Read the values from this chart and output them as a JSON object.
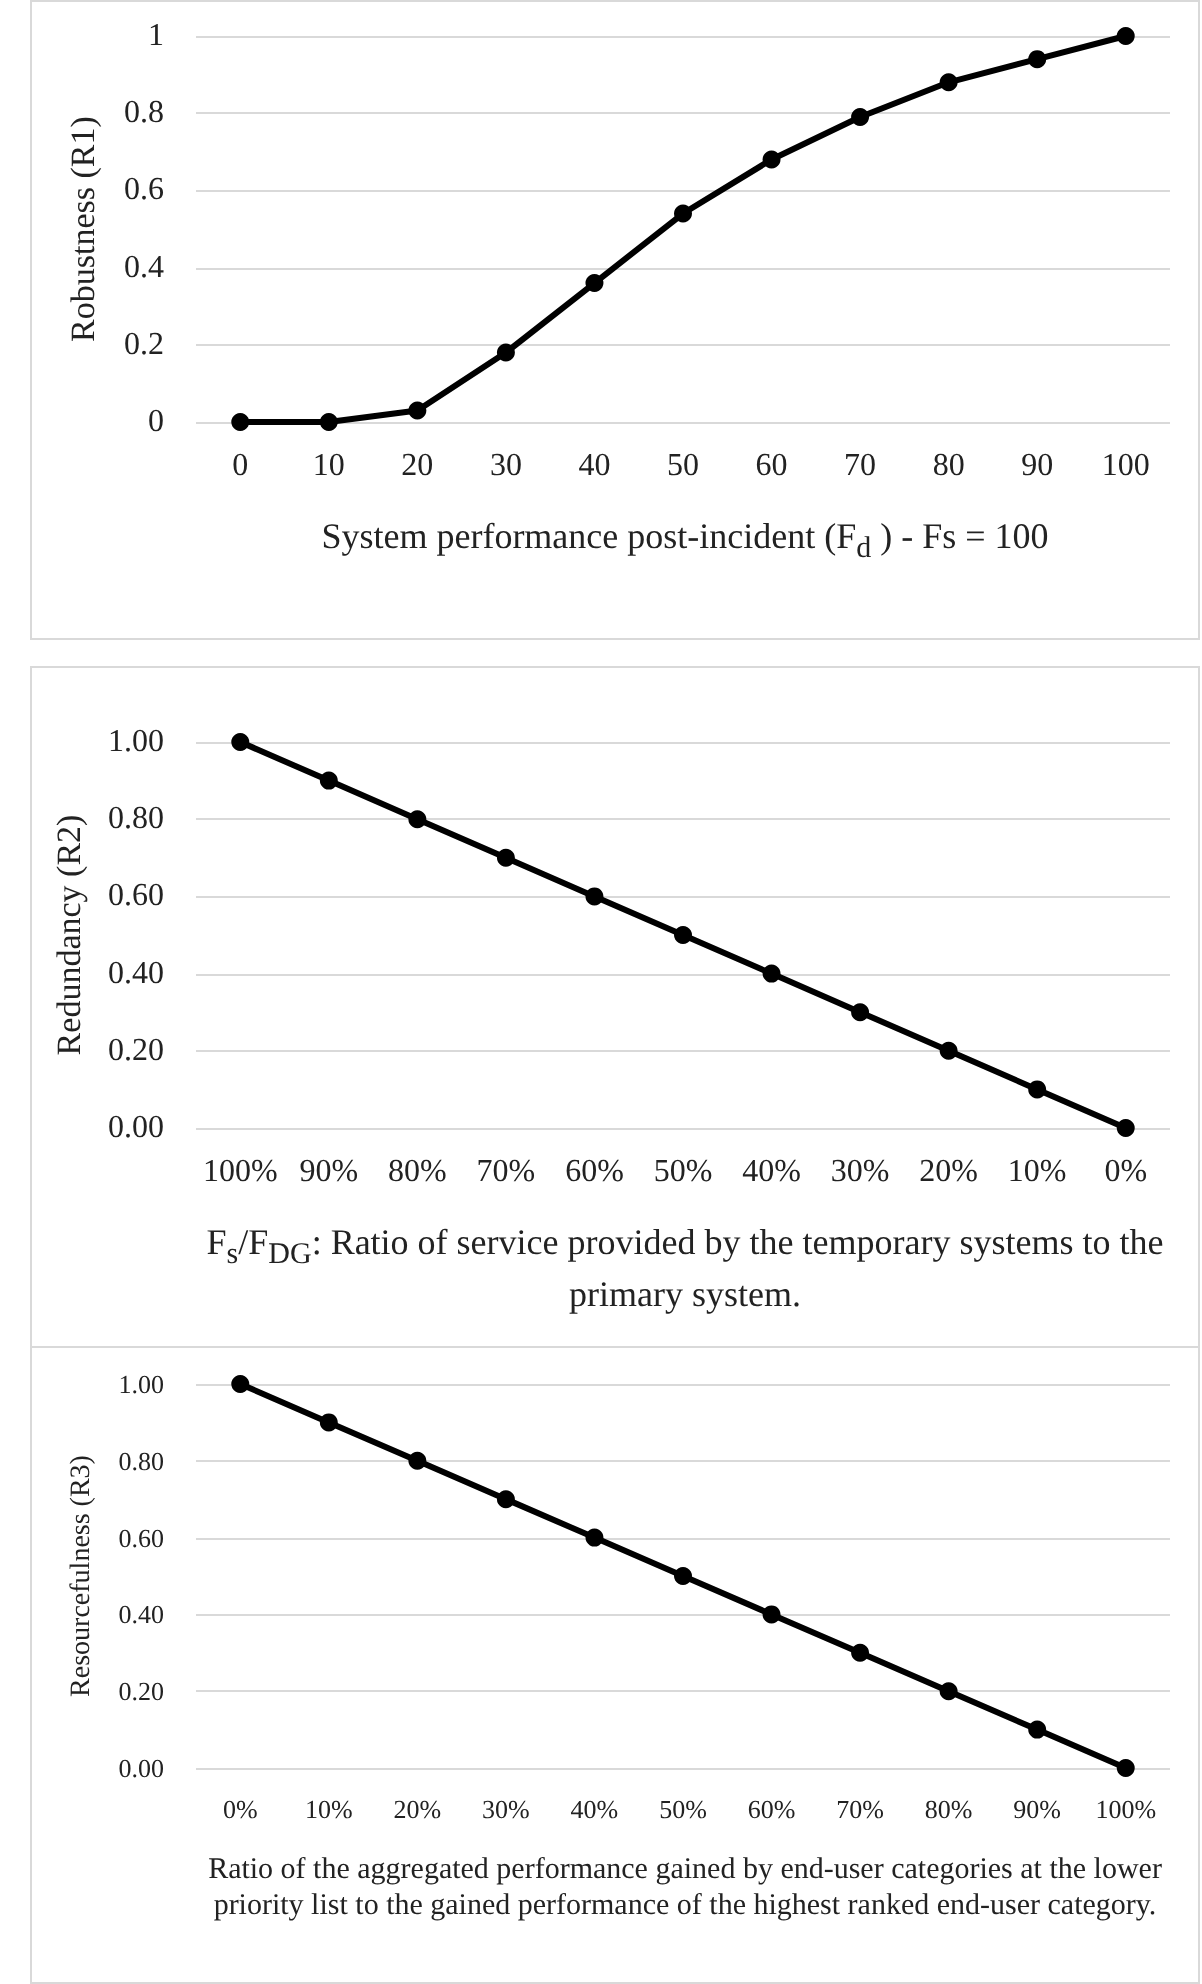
{
  "chart_data": [
    {
      "type": "line",
      "xlabel": "System performance post-incident (F$_{d}$ ) - Fs = 100",
      "ylabel": "Robustness (R1)",
      "categories": [
        "0",
        "10",
        "20",
        "30",
        "40",
        "50",
        "60",
        "70",
        "80",
        "90",
        "100"
      ],
      "series": [
        {
          "color": "#000000",
          "values": [
            0,
            0,
            0.03,
            0.18,
            0.36,
            0.54,
            0.68,
            0.79,
            0.88,
            0.94,
            1
          ]
        }
      ],
      "ylim": [
        0,
        1
      ],
      "yticks": [
        0,
        0.2,
        0.4,
        0.6,
        0.8,
        1
      ],
      "grid": "y",
      "marker": "circle",
      "line_style": "solid"
    },
    {
      "type": "line",
      "xlabel": "F$_{s}$/F$_{DG}$: Ratio of service provided by the temporary systems to the primary system.",
      "ylabel": "Redundancy (R2)",
      "categories": [
        "100%",
        "90%",
        "80%",
        "70%",
        "60%",
        "50%",
        "40%",
        "30%",
        "20%",
        "10%",
        "0%"
      ],
      "series": [
        {
          "color": "#000000",
          "values": [
            1,
            0.9,
            0.8,
            0.7,
            0.6,
            0.5,
            0.4,
            0.3,
            0.2,
            0.1,
            0
          ]
        }
      ],
      "ylim": [
        0,
        1
      ],
      "yticks": [
        {
          "value": 0,
          "label": "0.00"
        },
        {
          "value": 0.2,
          "label": "0.20"
        },
        {
          "value": 0.4,
          "label": "0.40"
        },
        {
          "value": 0.6,
          "label": "0.60"
        },
        {
          "value": 0.8,
          "label": "0.80"
        },
        {
          "value": 1,
          "label": "1.00"
        }
      ],
      "grid": "y",
      "marker": "circle",
      "line_style": "solid"
    },
    {
      "type": "line",
      "xlabel": "Ratio of the aggregated performance gained by end-user categories at the lower priority list to the gained performance of the highest ranked end-user category.",
      "ylabel": "Resourcefulness (R3)",
      "categories": [
        "0%",
        "10%",
        "20%",
        "30%",
        "40%",
        "50%",
        "60%",
        "70%",
        "80%",
        "90%",
        "100%"
      ],
      "series": [
        {
          "color": "#000000",
          "values": [
            1,
            0.9,
            0.8,
            0.7,
            0.6,
            0.5,
            0.4,
            0.3,
            0.2,
            0.1,
            0
          ]
        }
      ],
      "ylim": [
        0,
        1
      ],
      "yticks": [
        {
          "value": 0,
          "label": "0.00"
        },
        {
          "value": 0.2,
          "label": "0.20"
        },
        {
          "value": 0.4,
          "label": "0.40"
        },
        {
          "value": 0.6,
          "label": "0.60"
        },
        {
          "value": 0.8,
          "label": "0.80"
        },
        {
          "value": 1,
          "label": "1.00"
        }
      ],
      "grid": "y",
      "marker": "circle",
      "line_style": "solid"
    }
  ]
}
